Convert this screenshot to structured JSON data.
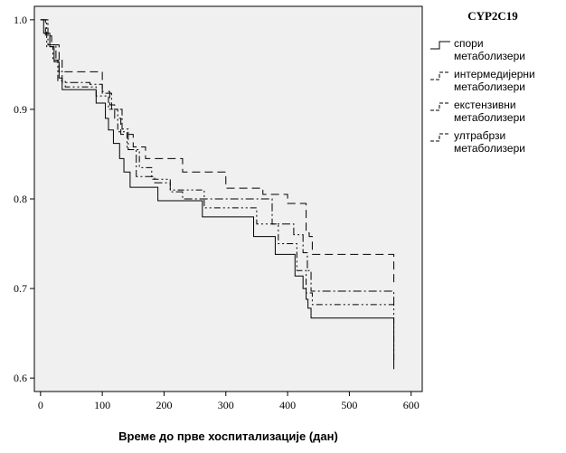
{
  "chart_data": {
    "type": "line",
    "xlabel": "Време до прве хоспитализације (дан)",
    "ylabel": "",
    "xlim": [
      -10,
      618
    ],
    "ylim": [
      0.585,
      1.015
    ],
    "xticks": [
      0,
      100,
      200,
      300,
      400,
      500,
      600
    ],
    "yticks": [
      0.6,
      0.7,
      0.8,
      0.9,
      1.0
    ],
    "ytick_labels": [
      "0.6",
      "0.7",
      "0.8",
      "0.9",
      "1.0"
    ],
    "grid": false,
    "legend_position": "right",
    "legend_title": "CYP2C19",
    "series": [
      {
        "name": [
          "спори",
          "метаболизери"
        ],
        "style": "solid",
        "x": [
          0,
          5,
          15,
          22,
          30,
          35,
          60,
          90,
          105,
          110,
          118,
          128,
          135,
          145,
          150,
          158,
          170,
          190,
          230,
          262,
          300,
          345,
          380,
          412,
          425,
          430,
          433,
          438,
          572
        ],
        "y": [
          1.0,
          0.985,
          0.97,
          0.953,
          0.935,
          0.922,
          0.922,
          0.907,
          0.89,
          0.877,
          0.862,
          0.845,
          0.83,
          0.813,
          0.813,
          0.813,
          0.813,
          0.798,
          0.798,
          0.78,
          0.78,
          0.758,
          0.738,
          0.714,
          0.7,
          0.688,
          0.678,
          0.667,
          0.61
        ]
      },
      {
        "name": [
          "интермедијерни",
          "метаболизери"
        ],
        "style": "dashdotdot",
        "x": [
          0,
          10,
          20,
          28,
          40,
          90,
          110,
          125,
          140,
          160,
          180,
          210,
          265,
          350,
          385,
          415,
          430,
          440,
          572
        ],
        "y": [
          1.0,
          0.97,
          0.955,
          0.932,
          0.925,
          0.915,
          0.9,
          0.875,
          0.855,
          0.835,
          0.822,
          0.81,
          0.79,
          0.772,
          0.75,
          0.72,
          0.695,
          0.682,
          0.62
        ]
      },
      {
        "name": [
          "екстензивни",
          "метаболизери"
        ],
        "style": "dashed",
        "x": [
          0,
          8,
          18,
          30,
          60,
          100,
          112,
          120,
          130,
          150,
          170,
          230,
          300,
          360,
          400,
          430,
          435,
          440,
          572
        ],
        "y": [
          1.0,
          0.982,
          0.972,
          0.942,
          0.942,
          0.92,
          0.905,
          0.89,
          0.872,
          0.858,
          0.845,
          0.83,
          0.812,
          0.805,
          0.795,
          0.762,
          0.758,
          0.738,
          0.705
        ]
      },
      {
        "name": [
          "ултрабрзи",
          "метаболизери"
        ],
        "style": "dashdot",
        "x": [
          0,
          12,
          25,
          35,
          80,
          100,
          115,
          132,
          142,
          155,
          185,
          210,
          230,
          262,
          345,
          375,
          410,
          425,
          432,
          438,
          572
        ],
        "y": [
          1.0,
          0.972,
          0.955,
          0.93,
          0.928,
          0.918,
          0.9,
          0.878,
          0.855,
          0.825,
          0.818,
          0.808,
          0.8,
          0.8,
          0.8,
          0.772,
          0.76,
          0.74,
          0.72,
          0.697,
          0.68
        ]
      }
    ]
  }
}
